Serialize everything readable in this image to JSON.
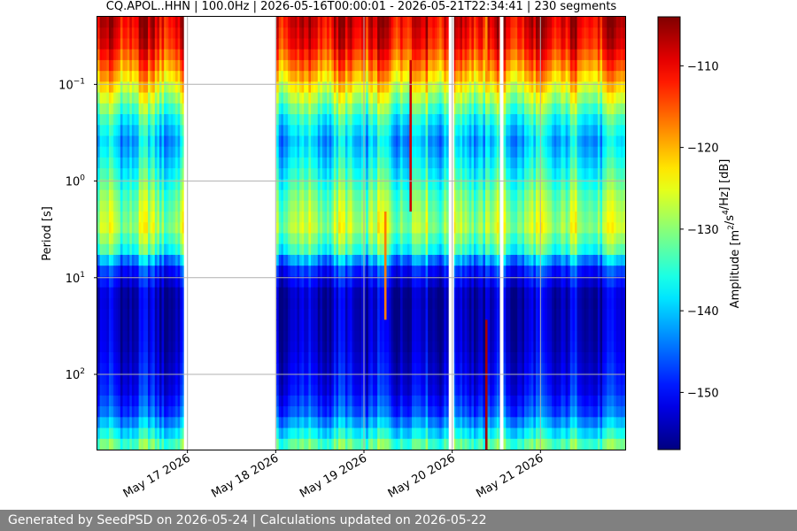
{
  "chart_data": {
    "type": "heatmap",
    "title": "CQ.APOL..HHN | 100.0Hz | 2026-05-16T00:00:01 - 2026-05-21T22:34:41 | 230 segments",
    "ylabel": "Period [s]",
    "colorbar_label": "Amplitude [m²/s⁴/Hz] [dB]",
    "colormap": "jet",
    "y_scale": "log",
    "y_inverted": true,
    "grid": true,
    "ylim": [
      0.02,
      600
    ],
    "y_ticks": [
      {
        "value": 0.1,
        "base": "10",
        "exp": "−1"
      },
      {
        "value": 1,
        "base": "10",
        "exp": "0"
      },
      {
        "value": 10,
        "base": "10",
        "exp": "1"
      },
      {
        "value": 100,
        "base": "10",
        "exp": "2"
      }
    ],
    "x_ticks": [
      "May 17 2026",
      "May 18 2026",
      "May 19 2026",
      "May 20 2026",
      "May 21 2026"
    ],
    "xlim_days": [
      -0.02,
      5.96
    ],
    "colorbar_range": [
      -157,
      -104
    ],
    "colorbar_ticks": [
      -110,
      -120,
      -130,
      -140,
      -150
    ],
    "colorbar_tick_labels": [
      "−110",
      "−120",
      "−130",
      "−140",
      "−150"
    ],
    "data_gaps_days": [
      [
        1.0,
        2.0
      ]
    ],
    "segment_breaks_days": [
      0.98,
      3.98,
      4.0,
      4.56
    ],
    "spectral_profile_db": [
      {
        "period": 0.02,
        "db": -108
      },
      {
        "period": 0.04,
        "db": -111
      },
      {
        "period": 0.07,
        "db": -118
      },
      {
        "period": 0.12,
        "db": -126
      },
      {
        "period": 0.25,
        "db": -137
      },
      {
        "period": 0.4,
        "db": -141
      },
      {
        "period": 0.8,
        "db": -136
      },
      {
        "period": 1.5,
        "db": -131
      },
      {
        "period": 3,
        "db": -128
      },
      {
        "period": 5,
        "db": -134
      },
      {
        "period": 8,
        "db": -148
      },
      {
        "period": 15,
        "db": -154
      },
      {
        "period": 50,
        "db": -153
      },
      {
        "period": 150,
        "db": -150
      },
      {
        "period": 250,
        "db": -146
      },
      {
        "period": 400,
        "db": -138
      },
      {
        "period": 600,
        "db": -130
      }
    ],
    "transients": [
      {
        "day": 3.25,
        "period_min": 2.0,
        "period_max": 30,
        "db": -117
      },
      {
        "day": 3.53,
        "period_min": 0.05,
        "period_max": 2.0,
        "db": -108
      },
      {
        "day": 4.38,
        "period_min": 30,
        "period_max": 600,
        "db": -106
      },
      {
        "day": 4.38,
        "period_min": 0.02,
        "period_max": 0.1,
        "db": -118
      }
    ]
  },
  "footer": {
    "text": "Generated by SeedPSD on 2026-05-24 | Calculations updated on 2026-05-22"
  }
}
